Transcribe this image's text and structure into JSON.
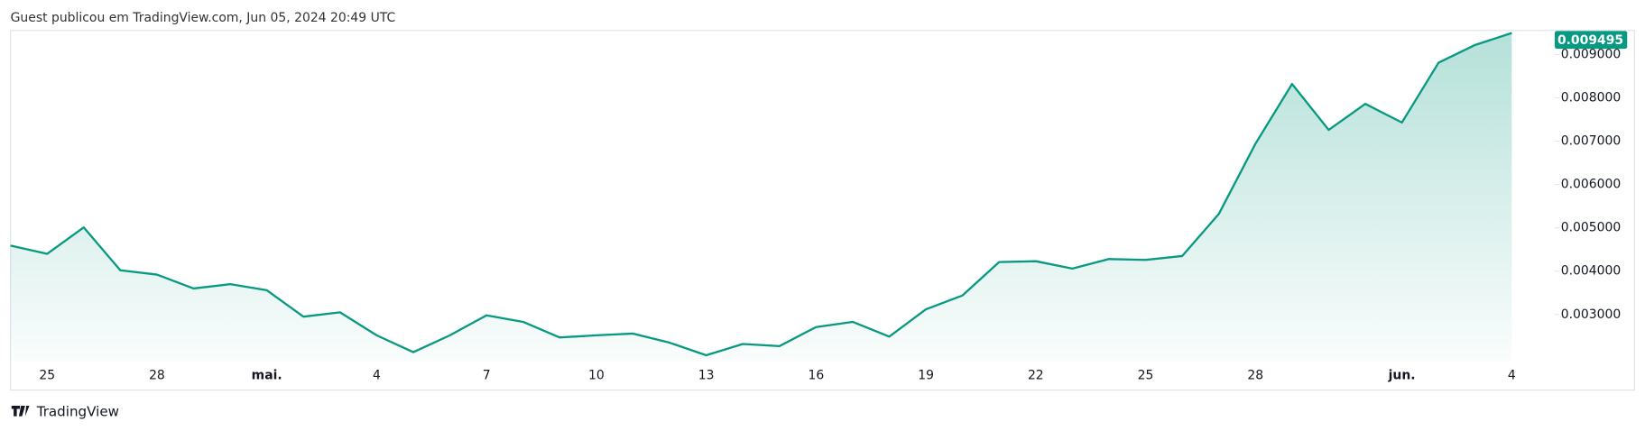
{
  "header": "Guest publicou em TradingView.com, Jun 05, 2024 20:49 UTC",
  "footer": "TradingView",
  "chart_data": {
    "type": "area",
    "color": "#089981",
    "last_price_label": "0.009495",
    "categories": [
      null,
      "25",
      null,
      null,
      "28",
      null,
      null,
      "mai.",
      null,
      null,
      "4",
      null,
      null,
      "7",
      null,
      null,
      "10",
      null,
      null,
      "13",
      null,
      null,
      "16",
      null,
      null,
      "19",
      null,
      null,
      "22",
      null,
      null,
      "25",
      null,
      null,
      "28",
      null,
      null,
      null,
      "jun.",
      null,
      null,
      "4"
    ],
    "values": [
      0.00459,
      0.0044,
      0.00501,
      0.00402,
      0.00392,
      0.0036,
      0.0037,
      0.00356,
      0.00295,
      0.00305,
      0.00252,
      0.00213,
      0.00252,
      0.00298,
      0.00283,
      0.00247,
      0.00252,
      0.00256,
      0.00235,
      0.00206,
      0.00232,
      0.00227,
      0.00271,
      0.00283,
      0.00249,
      0.00312,
      0.00344,
      0.00421,
      0.00423,
      0.00406,
      0.00428,
      0.00426,
      0.00435,
      0.00532,
      0.00694,
      0.00832,
      0.00726,
      0.00786,
      0.00743,
      0.00881,
      0.00922,
      0.009495
    ],
    "ylim": [
      0.00191,
      0.00953
    ],
    "yticks": [
      {
        "value": 0.003,
        "label": "0.003000"
      },
      {
        "value": 0.004,
        "label": "0.004000"
      },
      {
        "value": 0.005,
        "label": "0.005000"
      },
      {
        "value": 0.006,
        "label": "0.006000"
      },
      {
        "value": 0.007,
        "label": "0.007000"
      },
      {
        "value": 0.008,
        "label": "0.008000"
      },
      {
        "value": 0.009,
        "label": "0.009000"
      }
    ]
  }
}
